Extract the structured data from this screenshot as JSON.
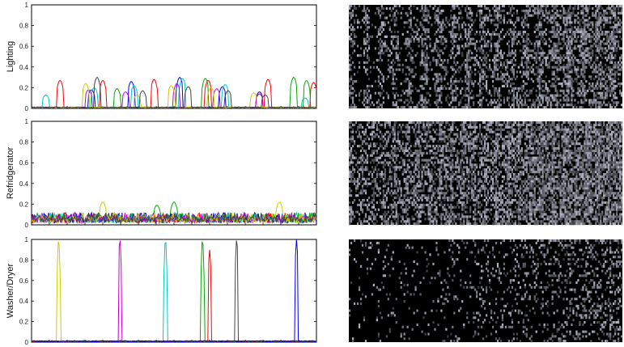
{
  "chart_data": [
    {
      "type": "line",
      "ylabel": "Lighting",
      "ylim": [
        0,
        1
      ],
      "yticks": [
        "0",
        "0.2",
        "0.4",
        "0.6",
        "0.8",
        "1"
      ],
      "series": [
        {
          "color": "#ff0000",
          "peaks": [
            [
              0.1,
              0.27
            ],
            [
              0.25,
              0.27
            ],
            [
              0.43,
              0.28
            ],
            [
              0.62,
              0.27
            ],
            [
              0.83,
              0.28
            ],
            [
              0.99,
              0.25
            ]
          ]
        },
        {
          "color": "#00aa00",
          "peaks": [
            [
              0.3,
              0.19
            ],
            [
              0.61,
              0.29
            ],
            [
              0.92,
              0.3
            ],
            [
              0.965,
              0.27
            ]
          ]
        },
        {
          "color": "#0000ff",
          "peaks": [
            [
              0.21,
              0.18
            ],
            [
              0.35,
              0.26
            ],
            [
              0.52,
              0.3
            ],
            [
              0.67,
              0.21
            ],
            [
              0.8,
              0.16
            ]
          ]
        },
        {
          "color": "#00c8c8",
          "peaks": [
            [
              0.05,
              0.13
            ],
            [
              0.22,
              0.2
            ],
            [
              0.36,
              0.22
            ],
            [
              0.53,
              0.29
            ],
            [
              0.68,
              0.23
            ],
            [
              0.96,
              0.1
            ]
          ]
        },
        {
          "color": "#cc00cc",
          "peaks": [
            [
              0.2,
              0.18
            ],
            [
              0.33,
              0.16
            ],
            [
              0.51,
              0.24
            ],
            [
              0.65,
              0.19
            ],
            [
              0.8,
              0.14
            ]
          ]
        },
        {
          "color": "#cccc00",
          "peaks": [
            [
              0.19,
              0.24
            ],
            [
              0.37,
              0.13
            ],
            [
              0.49,
              0.22
            ],
            [
              0.63,
              0.2
            ],
            [
              0.78,
              0.15
            ]
          ]
        },
        {
          "color": "#444444",
          "peaks": [
            [
              0.23,
              0.3
            ],
            [
              0.39,
              0.17
            ],
            [
              0.55,
              0.21
            ],
            [
              0.69,
              0.17
            ],
            [
              0.82,
              0.13
            ]
          ]
        }
      ]
    },
    {
      "type": "line",
      "ylabel": "Refridgerator",
      "ylim": [
        0,
        1
      ],
      "yticks": [
        "0",
        "0.2",
        "0.4",
        "0.6",
        "0.8",
        "1"
      ],
      "series": [
        {
          "color": "#ff0000",
          "peaks": []
        },
        {
          "color": "#00aa00",
          "peaks": [
            [
              0.5,
              0.22
            ],
            [
              0.44,
              0.19
            ]
          ]
        },
        {
          "color": "#0000ff",
          "peaks": []
        },
        {
          "color": "#00c8c8",
          "peaks": []
        },
        {
          "color": "#cc00cc",
          "peaks": []
        },
        {
          "color": "#cccc00",
          "peaks": [
            [
              0.25,
              0.22
            ],
            [
              0.87,
              0.22
            ]
          ]
        },
        {
          "color": "#444444",
          "peaks": []
        }
      ]
    },
    {
      "type": "line",
      "ylabel": "Washer/Dryer",
      "ylim": [
        0,
        1
      ],
      "yticks": [
        "0",
        "0.2",
        "0.4",
        "0.6",
        "0.8",
        "1"
      ],
      "series": [
        {
          "color": "#cccc00",
          "peaks": [
            [
              0.095,
              1.0
            ]
          ]
        },
        {
          "color": "#cc00cc",
          "peaks": [
            [
              0.31,
              1.0
            ]
          ]
        },
        {
          "color": "#00c8c8",
          "peaks": [
            [
              0.47,
              1.0
            ]
          ]
        },
        {
          "color": "#00aa00",
          "peaks": [
            [
              0.6,
              1.0
            ]
          ]
        },
        {
          "color": "#ff0000",
          "peaks": [
            [
              0.625,
              0.9
            ]
          ]
        },
        {
          "color": "#444444",
          "peaks": [
            [
              0.72,
              1.0
            ]
          ]
        },
        {
          "color": "#0000ff",
          "peaks": [
            [
              0.93,
              1.0
            ]
          ]
        }
      ]
    }
  ],
  "heatmaps": [
    {
      "theme": "lighting-activation-pattern"
    },
    {
      "theme": "refrigerator-activation-pattern"
    },
    {
      "theme": "washer-dryer-activation-pattern"
    }
  ]
}
